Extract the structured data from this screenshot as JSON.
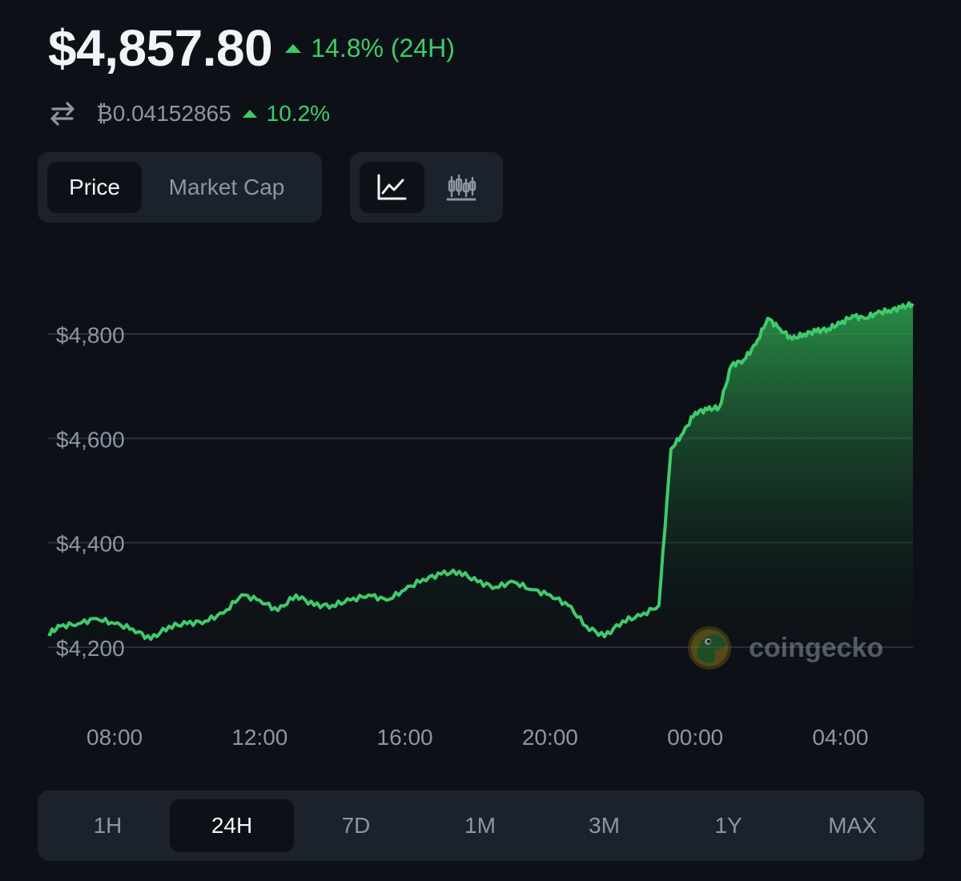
{
  "header": {
    "price": "$4,857.80",
    "change_24h": "14.8% (24H)",
    "btc_price": "₿0.04152865",
    "btc_change": "10.2%",
    "up_color": "#3fcb6b",
    "swap_icon": "swap-arrows-icon"
  },
  "metric_toggle": {
    "price_label": "Price",
    "market_cap_label": "Market Cap",
    "selected": "Price"
  },
  "chart_type_toggle": {
    "line_icon": "line-chart-icon",
    "candle_icon": "candlestick-chart-icon",
    "selected": "line"
  },
  "watermark": {
    "text": "coingecko",
    "icon": "gecko-logo-icon"
  },
  "chart_data": {
    "type": "area",
    "title": "",
    "xlabel": "",
    "ylabel": "",
    "x_ticks": [
      "08:00",
      "12:00",
      "16:00",
      "20:00",
      "00:00",
      "04:00"
    ],
    "y_ticks": [
      "$4,200",
      "$4,400",
      "$4,600",
      "$4,800"
    ],
    "y_tick_values": [
      4200,
      4400,
      4600,
      4800
    ],
    "ylim": [
      4195,
      4860
    ],
    "x_range": [
      "06:10",
      "06:00"
    ],
    "grid": true,
    "line_color": "#3fcb6b",
    "series": [
      {
        "x": [
          "06:10",
          "06:30",
          "07:00",
          "07:30",
          "08:00",
          "08:30",
          "09:00",
          "09:30",
          "10:00",
          "10:30",
          "11:00",
          "11:30",
          "12:00",
          "12:30",
          "13:00",
          "13:30",
          "14:00",
          "14:30",
          "15:00",
          "15:30",
          "16:00",
          "16:30",
          "17:00",
          "17:30",
          "18:00",
          "18:30",
          "19:00",
          "19:30",
          "20:00",
          "20:30",
          "21:00",
          "21:30",
          "22:00",
          "22:30",
          "23:00",
          "23:20",
          "23:40",
          "00:00",
          "00:20",
          "00:40",
          "01:00",
          "01:20",
          "01:40",
          "02:00",
          "02:20",
          "02:40",
          "03:00",
          "03:20",
          "03:40",
          "04:00",
          "04:20",
          "04:40",
          "05:00",
          "05:20",
          "05:40",
          "06:00"
        ],
        "values": [
          4225,
          4240,
          4245,
          4255,
          4245,
          4235,
          4215,
          4240,
          4245,
          4250,
          4265,
          4300,
          4290,
          4270,
          4300,
          4280,
          4280,
          4290,
          4300,
          4290,
          4310,
          4330,
          4340,
          4345,
          4325,
          4315,
          4325,
          4310,
          4300,
          4280,
          4240,
          4220,
          4250,
          4260,
          4280,
          4580,
          4610,
          4650,
          4655,
          4660,
          4740,
          4750,
          4780,
          4830,
          4810,
          4790,
          4800,
          4805,
          4810,
          4820,
          4835,
          4830,
          4840,
          4845,
          4850,
          4858
        ]
      }
    ]
  },
  "range_tabs": {
    "items": [
      "1H",
      "24H",
      "7D",
      "1M",
      "3M",
      "1Y",
      "MAX"
    ],
    "selected": "24H"
  }
}
